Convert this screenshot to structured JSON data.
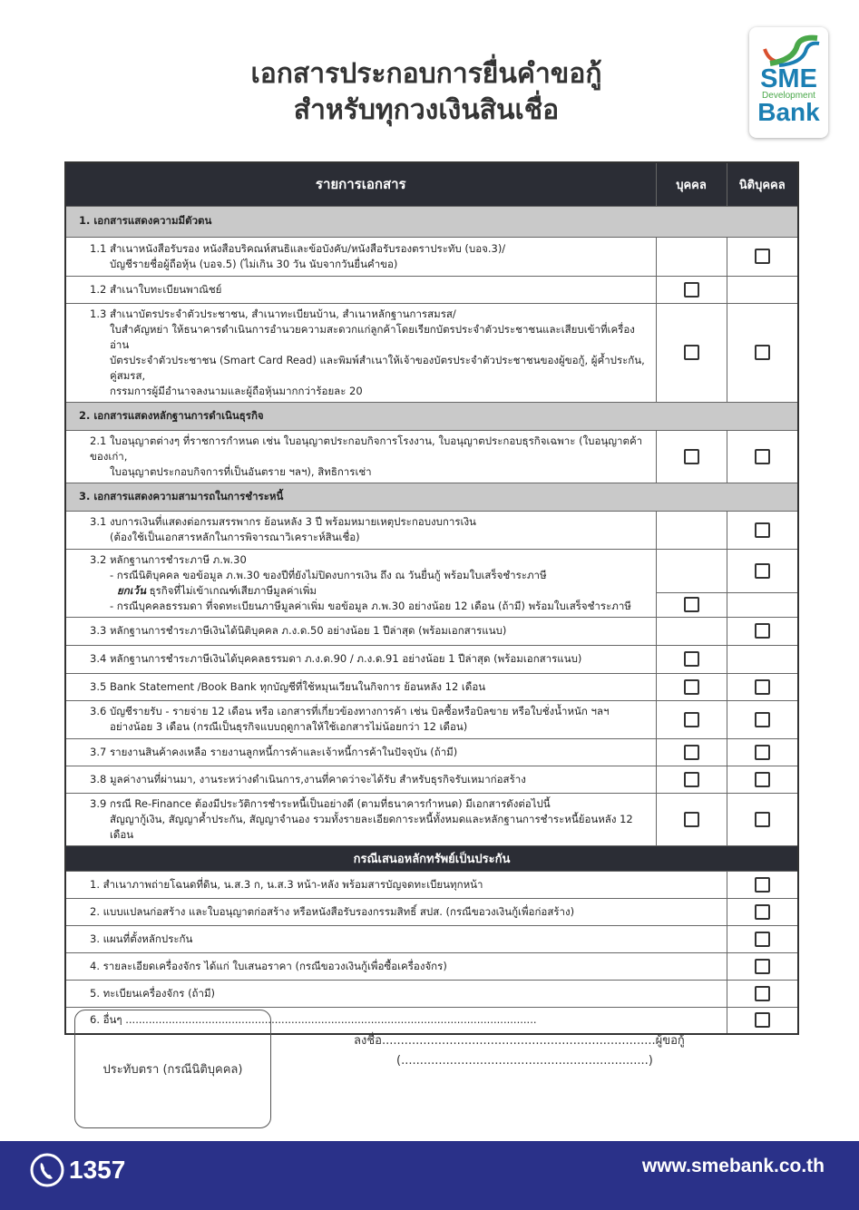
{
  "title": {
    "line1": "เอกสารประกอบการยื่นคำขอกู้",
    "line2": "สำหรับทุกวงเงินสินเชื่อ"
  },
  "logo": {
    "sme": "SME",
    "development": "Development",
    "bank": "Bank",
    "colors": {
      "blue": "#1b7fb3",
      "green": "#4aa84a",
      "red": "#d9502f"
    }
  },
  "table": {
    "headers": {
      "documents": "รายการเอกสาร",
      "individual": "บุคคล",
      "juristic": "นิติบุคคล"
    },
    "sections": [
      {
        "title": "1. เอกสารแสดงความมีตัวตน",
        "items": [
          {
            "lines": [
              "1.1 สำเนาหนังสือรับรอง หนังสือบริคณห์สนธิและข้อบังคับ/หนังสือรับรองตราประทับ (บอจ.3)/",
              "บัญชีรายชื่อผู้ถือหุ้น (บอจ.5) (ไม่เกิน 30 วัน นับจากวันยื่นคำขอ)"
            ],
            "individual": false,
            "juristic": true
          },
          {
            "lines": [
              "1.2 สำเนาใบทะเบียนพาณิชย์"
            ],
            "individual": true,
            "juristic": false
          },
          {
            "lines": [
              "1.3 สำเนาบัตรประจำตัวประชาชน, สำเนาทะเบียนบ้าน, สำเนาหลักฐานการสมรส/",
              "ใบสำคัญหย่า ให้ธนาคารดำเนินการอำนวยความสะดวกแก่ลูกค้าโดยเรียกบัตรประจำตัวประชาชนและเสียบเข้าที่เครื่องอ่าน",
              "บัตรประจำตัวประชาชน (Smart Card Read) และพิมพ์สำเนาให้เจ้าของบัตรประจำตัวประชาชนของผู้ขอกู้, ผู้ค้ำประกัน, คู่สมรส,",
              "กรรมการผู้มีอำนาจลงนามและผู้ถือหุ้นมากกว่าร้อยละ 20"
            ],
            "individual": true,
            "juristic": true
          }
        ]
      },
      {
        "title": "2. เอกสารแสดงหลักฐานการดำเนินธุรกิจ",
        "items": [
          {
            "lines": [
              "2.1 ใบอนุญาตต่างๆ ที่ราชการกำหนด เช่น ใบอนุญาตประกอบกิจการโรงงาน, ใบอนุญาตประกอบธุรกิจเฉพาะ (ใบอนุญาตค้าของเก่า,",
              "ใบอนุญาตประกอบกิจการที่เป็นอันตราย ฯลฯ), สิทธิการเช่า"
            ],
            "individual": true,
            "juristic": true
          }
        ]
      },
      {
        "title": "3. เอกสารแสดงความสามารถในการชำระหนี้",
        "items": [
          {
            "lines": [
              "3.1 งบการเงินที่แสดงต่อกรมสรรพากร ย้อนหลัง 3 ปี พร้อมหมายเหตุประกอบงบการเงิน",
              "(ต้องใช้เป็นเอกสารหลักในการพิจารณาวิเคราะห์สินเชื่อ)"
            ],
            "individual": false,
            "juristic": true
          }
        ]
      }
    ],
    "item_3_2": {
      "heading": "3.2 หลักฐานการชำระภาษี ภ.พ.30",
      "juristic_line1": "- กรณีนิติบุคคล ขอข้อมูล ภ.พ.30 ของปีที่ยังไม่ปิดงบการเงิน ถึง ณ วันยื่นกู้ พร้อมใบเสร็จชำระภาษี",
      "except_label": "ยกเว้น",
      "juristic_line2": "ธุรกิจที่ไม่เข้าเกณฑ์เสียภาษีมูลค่าเพิ่ม",
      "individual_line": "- กรณีบุคคลธรรมดา ที่จดทะเบียนภาษีมูลค่าเพิ่ม ขอข้อมูล ภ.พ.30 อย่างน้อย 12 เดือน (ถ้ามี) พร้อมใบเสร็จชำระภาษี"
    },
    "items_3b": [
      {
        "lines": [
          "3.3 หลักฐานการชำระภาษีเงินได้นิติบุคคล ภ.ง.ด.50  อย่างน้อย 1 ปีล่าสุด (พร้อมเอกสารแนบ)"
        ],
        "individual": false,
        "juristic": true
      },
      {
        "lines": [
          "3.4 หลักฐานการชำระภาษีเงินได้บุคคลธรรมดา ภ.ง.ด.90 / ภ.ง.ด.91 อย่างน้อย 1 ปีล่าสุด (พร้อมเอกสารแนบ)"
        ],
        "individual": true,
        "juristic": false
      },
      {
        "lines": [
          "3.5 Bank Statement /Book Bank ทุกบัญชีที่ใช้หมุนเวียนในกิจการ ย้อนหลัง 12 เดือน"
        ],
        "individual": true,
        "juristic": true
      },
      {
        "lines": [
          "3.6 บัญชีรายรับ - รายจ่าย 12 เดือน หรือ เอกสารที่เกี่ยวข้องทางการค้า เช่น บิลซื้อหรือบิลขาย หรือใบชั่งน้ำหนัก ฯลฯ",
          "อย่างน้อย 3 เดือน (กรณีเป็นธุรกิจแบบฤดูกาลให้ใช้เอกสารไม่น้อยกว่า 12 เดือน)"
        ],
        "individual": true,
        "juristic": true
      },
      {
        "lines": [
          "3.7 รายงานสินค้าคงเหลือ รายงานลูกหนี้การค้าและเจ้าหนี้การค้าในปัจจุบัน (ถ้ามี)"
        ],
        "individual": true,
        "juristic": true
      },
      {
        "lines": [
          "3.8 มูลค่างานที่ผ่านมา, งานระหว่างดำเนินการ,งานที่คาดว่าจะได้รับ สำหรับธุรกิจรับเหมาก่อสร้าง"
        ],
        "individual": true,
        "juristic": true
      },
      {
        "lines": [
          "3.9 กรณี Re-Finance ต้องมีประวัติการชำระหนี้เป็นอย่างดี (ตามที่ธนาคารกำหนด) มีเอกสารดังต่อไปนี้",
          "สัญญากู้เงิน, สัญญาค้ำประกัน, สัญญาจำนอง รวมทั้งรายละเอียดการะหนี้ทั้งหมดและหลักฐานการชำระหนี้ย้อนหลัง 12 เดือน"
        ],
        "individual": true,
        "juristic": true
      }
    ],
    "collateral": {
      "title": "กรณีเสนอหลักทรัพย์เป็นประกัน",
      "items": [
        "1. สำเนาภาพถ่ายโฉนดที่ดิน, น.ส.3 ก, น.ส.3 หน้า-หลัง พร้อมสารบัญจดทะเบียนทุกหน้า",
        "2. แบบแปลนก่อสร้าง และใบอนุญาตก่อสร้าง หรือหนังสือรับรองกรรมสิทธิ์ สปส. (กรณีขอวงเงินกู้เพื่อก่อสร้าง)",
        "3. แผนที่ตั้งหลักประกัน",
        "4. รายละเอียดเครื่องจักร ได้แก่ ใบเสนอราคา (กรณีขอวงเงินกู้เพื่อซื้อเครื่องจักร)",
        "5. ทะเบียนเครื่องจักร (ถ้ามี)",
        "6. อื่นๆ ............................................................................................................................"
      ]
    }
  },
  "signature": {
    "stamp": "ประทับตรา (กรณีนิติบุคคล)",
    "sign_line": "ลงชื่อ.........................................................................ผู้ขอกู้",
    "name_line": "(..................................................................)"
  },
  "footer": {
    "phone": "1357",
    "url": "www.smebank.co.th",
    "color": "#2a3189"
  }
}
